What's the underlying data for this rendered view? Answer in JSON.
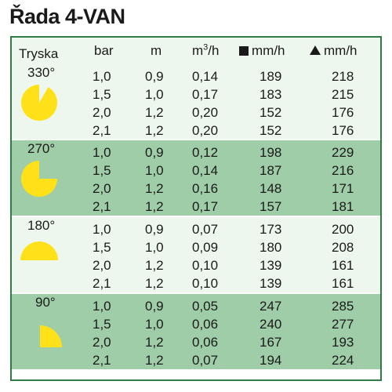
{
  "title": "Řada 4-VAN",
  "header": {
    "tryska": "Tryska",
    "bar": "bar",
    "m": "m",
    "m3h_base": "m",
    "m3h_sup": "3",
    "m3h_tail": "/h",
    "square_mmh": "mm/h",
    "triangle_mmh": "mm/h"
  },
  "colors": {
    "yellow": "#ffe11a",
    "light_row": "#eef7ee",
    "dark_row": "#9fcda7",
    "border": "#2f7d46"
  },
  "groups": [
    {
      "angle": "330°",
      "rows": [
        {
          "bar": "1,0",
          "m": "0,9",
          "flow": "0,14",
          "sq": "189",
          "tri": "218"
        },
        {
          "bar": "1,5",
          "m": "1,0",
          "flow": "0,17",
          "sq": "183",
          "tri": "215"
        },
        {
          "bar": "2,0",
          "m": "1,2",
          "flow": "0,20",
          "sq": "152",
          "tri": "176"
        },
        {
          "bar": "2,1",
          "m": "1,2",
          "flow": "0,20",
          "sq": "152",
          "tri": "176"
        }
      ]
    },
    {
      "angle": "270°",
      "rows": [
        {
          "bar": "1,0",
          "m": "0,9",
          "flow": "0,12",
          "sq": "198",
          "tri": "229"
        },
        {
          "bar": "1,5",
          "m": "1,0",
          "flow": "0,14",
          "sq": "187",
          "tri": "216"
        },
        {
          "bar": "2,0",
          "m": "1,2",
          "flow": "0,16",
          "sq": "148",
          "tri": "171"
        },
        {
          "bar": "2,1",
          "m": "1,2",
          "flow": "0,17",
          "sq": "157",
          "tri": "181"
        }
      ]
    },
    {
      "angle": "180°",
      "rows": [
        {
          "bar": "1,0",
          "m": "0,9",
          "flow": "0,07",
          "sq": "173",
          "tri": "200"
        },
        {
          "bar": "1,5",
          "m": "1,0",
          "flow": "0,09",
          "sq": "180",
          "tri": "208"
        },
        {
          "bar": "2,0",
          "m": "1,2",
          "flow": "0,10",
          "sq": "139",
          "tri": "161"
        },
        {
          "bar": "2,1",
          "m": "1,2",
          "flow": "0,10",
          "sq": "139",
          "tri": "161"
        }
      ]
    },
    {
      "angle": "90°",
      "rows": [
        {
          "bar": "1,0",
          "m": "0,9",
          "flow": "0,05",
          "sq": "247",
          "tri": "285"
        },
        {
          "bar": "1,5",
          "m": "1,0",
          "flow": "0,06",
          "sq": "240",
          "tri": "277"
        },
        {
          "bar": "2,0",
          "m": "1,2",
          "flow": "0,06",
          "sq": "167",
          "tri": "193"
        },
        {
          "bar": "2,1",
          "m": "1,2",
          "flow": "0,07",
          "sq": "194",
          "tri": "224"
        }
      ]
    }
  ]
}
